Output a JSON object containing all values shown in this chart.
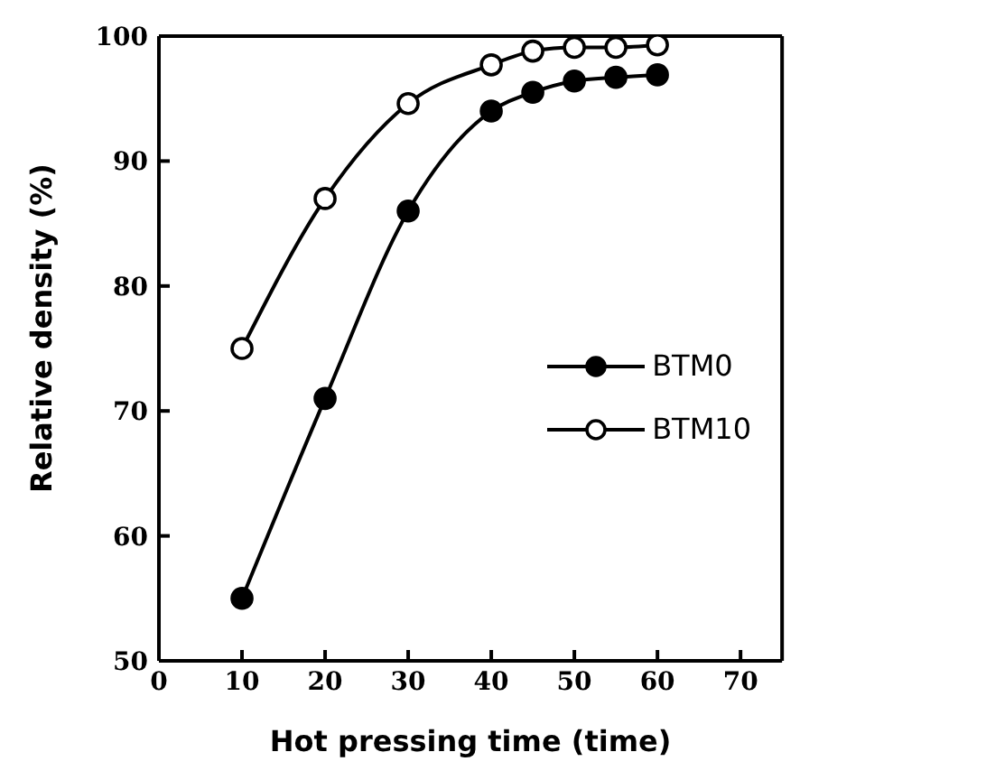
{
  "chart_data": {
    "type": "line",
    "xlabel": "Hot pressing time (time)",
    "ylabel": "Relative density (%)",
    "x": [
      10,
      20,
      30,
      40,
      45,
      50,
      55,
      60
    ],
    "series": [
      {
        "name": "BTM0",
        "color": "#000000",
        "values": [
          55,
          71,
          86,
          94,
          95.5,
          96.4,
          96.7,
          96.9
        ]
      },
      {
        "name": "BTM10",
        "color": "#000000",
        "values": [
          75,
          87,
          94.6,
          97.7,
          98.8,
          99.1,
          99.1,
          99.3
        ]
      }
    ],
    "xlim": [
      0,
      75
    ],
    "xticks": [
      0,
      10,
      20,
      30,
      40,
      50,
      60,
      70
    ],
    "ylim": [
      50,
      100
    ],
    "yticks": [
      50,
      60,
      70,
      80,
      90,
      100
    ],
    "marker": "circle",
    "legend": "right",
    "line_style": "solid"
  }
}
